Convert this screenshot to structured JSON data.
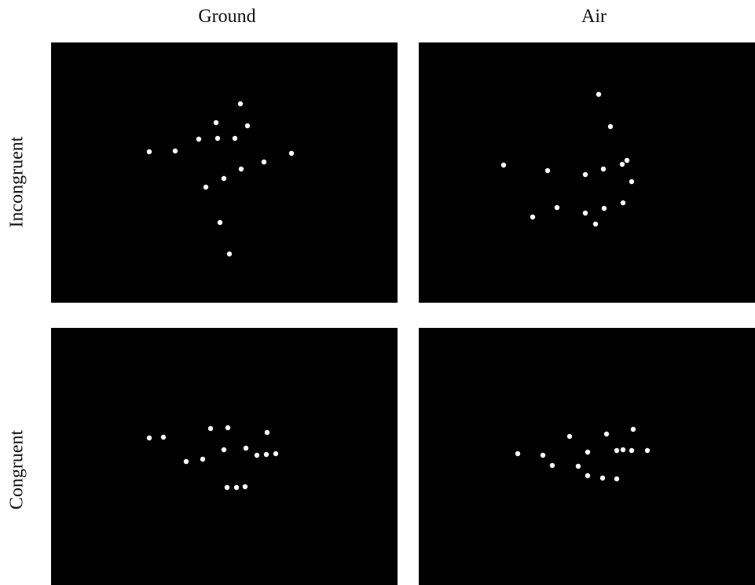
{
  "columns": {
    "ground": "Ground",
    "air": "Air"
  },
  "rows": {
    "incongruent": "Incongruent",
    "congruent": "Congruent"
  },
  "colors": {
    "background": "#ffffff",
    "panel": "#000000",
    "dot": "#ffffff"
  }
}
